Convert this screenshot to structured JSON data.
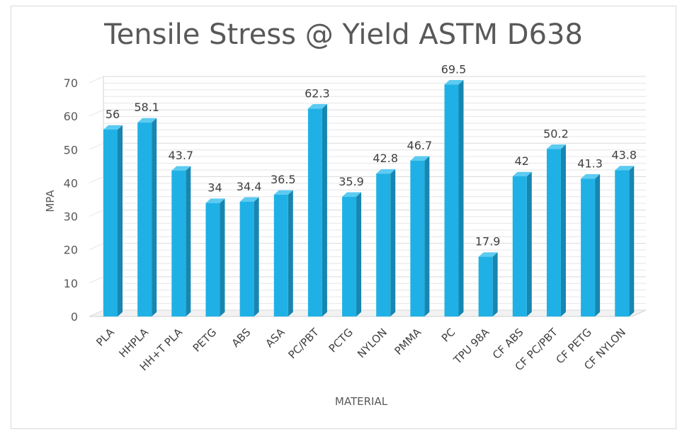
{
  "chart_data": {
    "type": "bar",
    "title": "Tensile Stress @ Yield ASTM D638",
    "xlabel": "MATERIAL",
    "ylabel": "MPA",
    "ylim": [
      0,
      70
    ],
    "yticks": [
      0,
      10,
      20,
      30,
      40,
      50,
      60,
      70
    ],
    "grid": true,
    "categories": [
      "PLA",
      "HHPLA",
      "HH+T PLA",
      "PETG",
      "ABS",
      "ASA",
      "PC/PBT",
      "PCTG",
      "NYLON",
      "PMMA",
      "PC",
      "TPU 98A",
      "CF ABS",
      "CF PC/PBT",
      "CF PETG",
      "CF NYLON"
    ],
    "values": [
      56,
      58.1,
      43.7,
      34,
      34.4,
      36.5,
      62.3,
      35.9,
      42.8,
      46.7,
      69.5,
      17.9,
      42,
      50.2,
      41.3,
      43.8
    ],
    "colors": {
      "bar_front": "#1fb1e6",
      "bar_side": "#1786b0",
      "bar_top": "#5ccbf1",
      "grid": "#e6e6e6",
      "axis": "#d0d0d0"
    }
  }
}
